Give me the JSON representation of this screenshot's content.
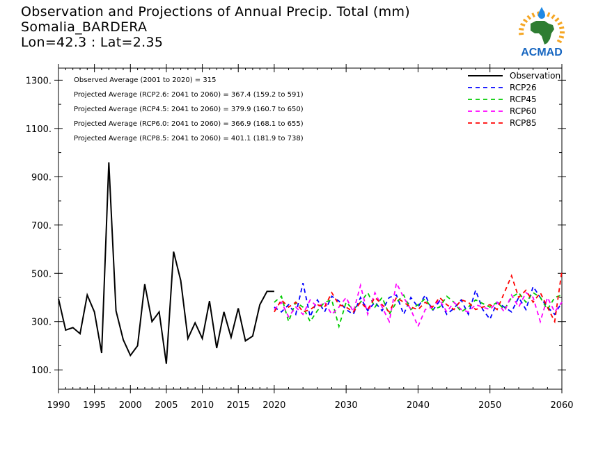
{
  "title": {
    "line1": "Observation and Projections of Annual Precip. Total (mm)",
    "line2": "Somalia_BARDERA",
    "line3": "Lon=42.3 : Lat=2.35"
  },
  "logo": {
    "text": "ACMAD",
    "colors": {
      "africa": "#2e7d32",
      "drop": "#1e88e5",
      "rays": "#f5a623",
      "text": "#1565c0"
    }
  },
  "annotations": [
    "Observed Average (2001 to 2020) = 315",
    "Projected Average (RCP2.6: 2041 to 2060) = 367.4 (159.2 to 591)",
    "Projected Average (RCP4.5: 2041 to 2060) = 379.9 (160.7 to 650)",
    "Projected Average (RCP6.0: 2041 to 2060) = 366.9 (168.1 to 655)",
    "Projected Average (RCP8.5: 2041 to 2060) = 401.1 (181.9 to 738)"
  ],
  "chart_data": {
    "type": "line",
    "xlim": [
      1990,
      2060
    ],
    "ylim": [
      20,
      1350
    ],
    "x_ticks": [
      {
        "value": 1990,
        "label": "1990"
      },
      {
        "value": 1995,
        "label": "1995"
      },
      {
        "value": 2000,
        "label": "2000"
      },
      {
        "value": 2005,
        "label": "2005"
      },
      {
        "value": 2010,
        "label": "2010"
      },
      {
        "value": 2015,
        "label": "2015"
      },
      {
        "value": 2020,
        "label": "2020"
      },
      {
        "value": 2030,
        "label": "2030"
      },
      {
        "value": 2040,
        "label": "2040"
      },
      {
        "value": 2050,
        "label": "2050"
      },
      {
        "value": 2060,
        "label": "2060"
      }
    ],
    "y_ticks": [
      {
        "value": 100,
        "label": "100."
      },
      {
        "value": 300,
        "label": "300."
      },
      {
        "value": 500,
        "label": "500."
      },
      {
        "value": 700,
        "label": "700."
      },
      {
        "value": 900,
        "label": "900."
      },
      {
        "value": 1100,
        "label": "1100."
      },
      {
        "value": 1300,
        "label": "1300."
      }
    ],
    "legend_position": "top-right",
    "series": [
      {
        "name": "Observation",
        "color": "#000000",
        "dash": "solid",
        "x": [
          1990,
          1991,
          1992,
          1993,
          1994,
          1995,
          1996,
          1997,
          1998,
          1999,
          2000,
          2001,
          2002,
          2003,
          2004,
          2005,
          2006,
          2007,
          2008,
          2009,
          2010,
          2011,
          2012,
          2013,
          2014,
          2015,
          2016,
          2017,
          2018,
          2019,
          2020
        ],
        "y": [
          395,
          265,
          275,
          250,
          410,
          340,
          170,
          960,
          345,
          225,
          160,
          200,
          455,
          300,
          340,
          125,
          590,
          470,
          230,
          295,
          230,
          385,
          190,
          340,
          235,
          355,
          220,
          240,
          370,
          425,
          425
        ]
      },
      {
        "name": "RCP26",
        "color": "#0000ff",
        "dash": "dashed",
        "x": [
          2020,
          2021,
          2022,
          2023,
          2024,
          2025,
          2026,
          2027,
          2028,
          2029,
          2030,
          2031,
          2032,
          2033,
          2034,
          2035,
          2036,
          2037,
          2038,
          2039,
          2040,
          2041,
          2042,
          2043,
          2044,
          2045,
          2046,
          2047,
          2048,
          2049,
          2050,
          2051,
          2052,
          2053,
          2054,
          2055,
          2056,
          2057,
          2058,
          2059,
          2060
        ],
        "y": [
          360,
          340,
          370,
          330,
          460,
          320,
          390,
          340,
          405,
          385,
          350,
          330,
          400,
          345,
          380,
          345,
          400,
          410,
          330,
          400,
          360,
          410,
          345,
          385,
          330,
          355,
          390,
          330,
          430,
          350,
          310,
          380,
          360,
          340,
          400,
          350,
          445,
          400,
          360,
          330,
          380
        ]
      },
      {
        "name": "RCP45",
        "color": "#00cc00",
        "dash": "dashed",
        "x": [
          2020,
          2021,
          2022,
          2023,
          2024,
          2025,
          2026,
          2027,
          2028,
          2029,
          2030,
          2031,
          2032,
          2033,
          2034,
          2035,
          2036,
          2037,
          2038,
          2039,
          2040,
          2041,
          2042,
          2043,
          2044,
          2045,
          2046,
          2047,
          2048,
          2049,
          2050,
          2051,
          2052,
          2053,
          2054,
          2055,
          2056,
          2057,
          2058,
          2059,
          2060
        ],
        "y": [
          380,
          405,
          300,
          380,
          360,
          300,
          345,
          380,
          390,
          280,
          380,
          350,
          380,
          420,
          360,
          400,
          330,
          380,
          410,
          350,
          370,
          395,
          350,
          360,
          405,
          380,
          340,
          360,
          390,
          375,
          360,
          380,
          350,
          400,
          420,
          380,
          420,
          400,
          350,
          400,
          410
        ]
      },
      {
        "name": "RCP60",
        "color": "#ff00ff",
        "dash": "dashed",
        "x": [
          2020,
          2021,
          2022,
          2023,
          2024,
          2025,
          2026,
          2027,
          2028,
          2029,
          2030,
          2031,
          2032,
          2033,
          2034,
          2035,
          2036,
          2037,
          2038,
          2039,
          2040,
          2041,
          2042,
          2043,
          2044,
          2045,
          2046,
          2047,
          2048,
          2049,
          2050,
          2051,
          2052,
          2053,
          2054,
          2055,
          2056,
          2057,
          2058,
          2059,
          2060
        ],
        "y": [
          350,
          380,
          320,
          360,
          330,
          390,
          360,
          380,
          330,
          360,
          400,
          340,
          450,
          330,
          420,
          360,
          300,
          460,
          400,
          350,
          280,
          350,
          360,
          390,
          340,
          380,
          350,
          340,
          370,
          360,
          350,
          380,
          340,
          410,
          360,
          420,
          400,
          300,
          400,
          340,
          380
        ]
      },
      {
        "name": "RCP85",
        "color": "#ff0000",
        "dash": "dashed",
        "x": [
          2020,
          2021,
          2022,
          2023,
          2024,
          2025,
          2026,
          2027,
          2028,
          2029,
          2030,
          2031,
          2032,
          2033,
          2034,
          2035,
          2036,
          2037,
          2038,
          2039,
          2040,
          2041,
          2042,
          2043,
          2044,
          2045,
          2046,
          2047,
          2048,
          2049,
          2050,
          2051,
          2052,
          2053,
          2054,
          2055,
          2056,
          2057,
          2058,
          2059,
          2060
        ],
        "y": [
          340,
          390,
          360,
          380,
          340,
          350,
          370,
          360,
          420,
          370,
          360,
          340,
          380,
          350,
          400,
          370,
          340,
          400,
          380,
          360,
          350,
          380,
          360,
          400,
          370,
          350,
          390,
          380,
          350,
          360,
          370,
          350,
          420,
          490,
          400,
          430,
          380,
          420,
          360,
          300,
          510
        ]
      }
    ]
  }
}
